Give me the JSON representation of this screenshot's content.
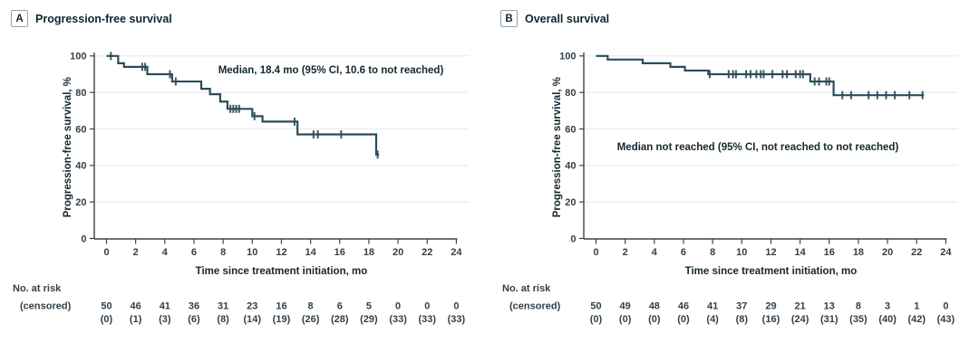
{
  "figure": {
    "risk_header": "No. at risk",
    "risk_subheader": "(censored)"
  },
  "colors": {
    "curve": "#2c4c5b",
    "axis": "#3c4247",
    "grid": "#eaeaea",
    "tick_text": "#333f48",
    "title_text": "#13242f"
  },
  "chart_data": [
    {
      "type": "line",
      "subtype": "kaplan-meier-step",
      "panel_label": "A",
      "title": "Progression-free survival",
      "annotation": "Median, 18.4 mo (95% CI, 10.6 to not reached)",
      "xlabel": "Time since treatment initiation, mo",
      "ylabel": "Progression-free survival, %",
      "xlim": [
        0,
        24
      ],
      "ylim": [
        0,
        100
      ],
      "xticks": [
        0,
        2,
        4,
        6,
        8,
        10,
        12,
        14,
        16,
        18,
        20,
        22,
        24
      ],
      "yticks": [
        0,
        20,
        40,
        60,
        80,
        100
      ],
      "grid": "horizontal",
      "legend": "none",
      "steps": [
        [
          0,
          100
        ],
        [
          0.8,
          96
        ],
        [
          1.2,
          94
        ],
        [
          2.8,
          90
        ],
        [
          4.5,
          86
        ],
        [
          6.5,
          82
        ],
        [
          7.1,
          79
        ],
        [
          7.8,
          75
        ],
        [
          8.3,
          71
        ],
        [
          10.0,
          67
        ],
        [
          10.7,
          64
        ],
        [
          13.1,
          57
        ],
        [
          18.5,
          46
        ]
      ],
      "end_x": 18.7,
      "censors": [
        [
          0.3,
          100
        ],
        [
          2.45,
          94
        ],
        [
          2.65,
          94
        ],
        [
          4.35,
          90
        ],
        [
          4.75,
          86
        ],
        [
          8.5,
          71
        ],
        [
          8.7,
          71
        ],
        [
          8.9,
          71
        ],
        [
          9.1,
          71
        ],
        [
          10.15,
          67
        ],
        [
          12.9,
          64
        ],
        [
          14.2,
          57
        ],
        [
          14.5,
          57
        ],
        [
          16.1,
          57
        ],
        [
          18.6,
          46
        ]
      ],
      "risk_label": "No. at risk",
      "censored_label": "(censored)",
      "at_risk": [
        "50",
        "46",
        "41",
        "36",
        "31",
        "23",
        "16",
        "8",
        "6",
        "5",
        "0",
        "0",
        "0"
      ],
      "censored": [
        "(0)",
        "(1)",
        "(3)",
        "(6)",
        "(8)",
        "(14)",
        "(19)",
        "(26)",
        "(28)",
        "(29)",
        "(33)",
        "(33)",
        "(33)"
      ]
    },
    {
      "type": "line",
      "subtype": "kaplan-meier-step",
      "panel_label": "B",
      "title": "Overall survival",
      "annotation": "Median not reached (95% CI, not reached to not reached)",
      "xlabel": "Time since treatment initiation, mo",
      "ylabel": "Progression-free survival, %",
      "xlim": [
        0,
        24
      ],
      "ylim": [
        0,
        100
      ],
      "xticks": [
        0,
        2,
        4,
        6,
        8,
        10,
        12,
        14,
        16,
        18,
        20,
        22,
        24
      ],
      "yticks": [
        0,
        20,
        40,
        60,
        80,
        100
      ],
      "grid": "horizontal",
      "legend": "none",
      "steps": [
        [
          0,
          100
        ],
        [
          0.8,
          98
        ],
        [
          3.2,
          96
        ],
        [
          5.1,
          94
        ],
        [
          6.1,
          92
        ],
        [
          7.7,
          90
        ],
        [
          14.7,
          86
        ],
        [
          16.3,
          78.5
        ]
      ],
      "end_x": 22.5,
      "censors": [
        [
          7.8,
          90
        ],
        [
          9.1,
          90
        ],
        [
          9.4,
          90
        ],
        [
          9.6,
          90
        ],
        [
          10.3,
          90
        ],
        [
          10.6,
          90
        ],
        [
          11.0,
          90
        ],
        [
          11.3,
          90
        ],
        [
          11.5,
          90
        ],
        [
          12.1,
          90
        ],
        [
          12.8,
          90
        ],
        [
          13.1,
          90
        ],
        [
          13.7,
          90
        ],
        [
          14.0,
          90
        ],
        [
          14.2,
          90
        ],
        [
          15.0,
          86
        ],
        [
          15.3,
          86
        ],
        [
          15.8,
          86
        ],
        [
          16.0,
          86
        ],
        [
          16.9,
          78.5
        ],
        [
          17.5,
          78.5
        ],
        [
          18.7,
          78.5
        ],
        [
          19.3,
          78.5
        ],
        [
          19.9,
          78.5
        ],
        [
          20.5,
          78.5
        ],
        [
          21.5,
          78.5
        ],
        [
          22.4,
          78.5
        ]
      ],
      "risk_label": "No. at risk",
      "censored_label": "(censored)",
      "at_risk": [
        "50",
        "49",
        "48",
        "46",
        "41",
        "37",
        "29",
        "21",
        "13",
        "8",
        "3",
        "1",
        "0"
      ],
      "censored": [
        "(0)",
        "(0)",
        "(0)",
        "(0)",
        "(4)",
        "(8)",
        "(16)",
        "(24)",
        "(31)",
        "(35)",
        "(40)",
        "(42)",
        "(43)"
      ]
    }
  ]
}
